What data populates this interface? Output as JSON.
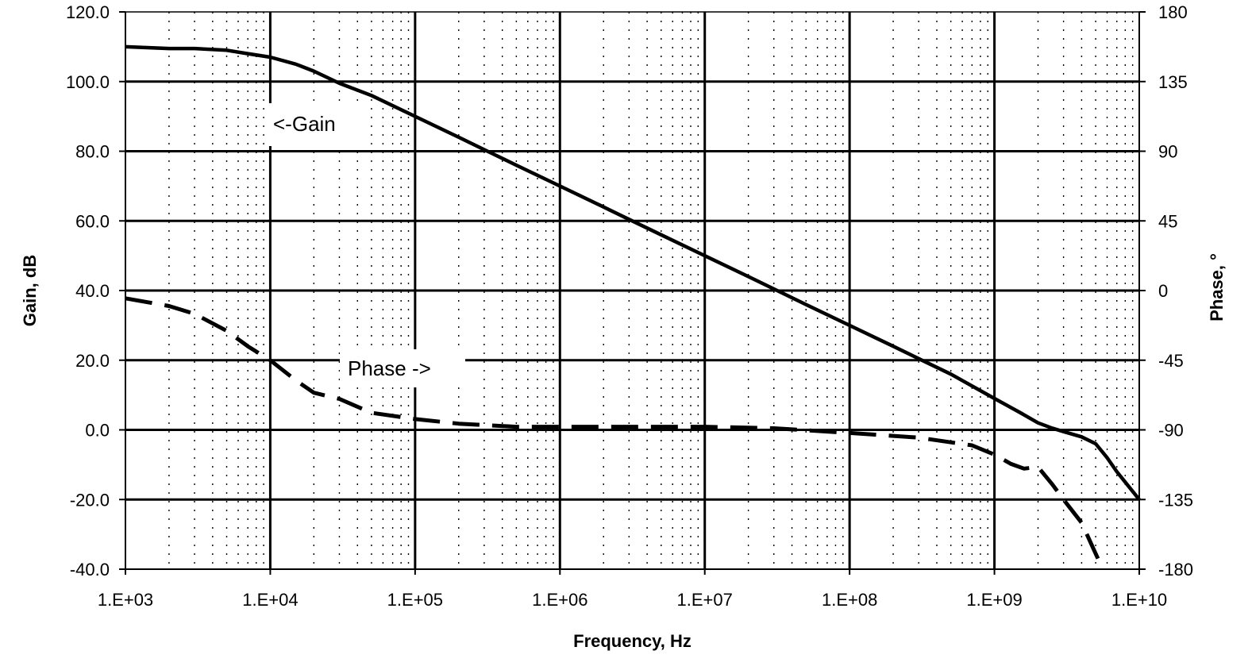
{
  "chart_data": {
    "type": "line",
    "title": "",
    "xlabel": "Frequency, Hz",
    "ylabel_left": "Gain, dB",
    "ylabel_right": "Phase, °",
    "x_scale": "log",
    "xlim": [
      1000,
      10000000000
    ],
    "ylim_left": [
      -40,
      120
    ],
    "ylim_right": [
      -180,
      180
    ],
    "x_tick_labels": [
      "1.E+03",
      "1.E+04",
      "1.E+05",
      "1.E+06",
      "1.E+07",
      "1.E+08",
      "1.E+09",
      "1.E+10"
    ],
    "y_left_tick_labels": [
      "-40.0",
      "-20.0",
      "0.0",
      "20.0",
      "40.0",
      "60.0",
      "80.0",
      "100.0",
      "120.0"
    ],
    "y_right_tick_labels": [
      "-180",
      "-135",
      "-90",
      "-45",
      "0",
      "45",
      "90",
      "135",
      "180"
    ],
    "grid": true,
    "annotations": [
      {
        "text": "<-Gain",
        "series": "Gain"
      },
      {
        "text": "Phase ->",
        "series": "Phase"
      }
    ],
    "series": [
      {
        "name": "Gain",
        "axis": "left",
        "style": "solid",
        "x": [
          1000,
          2000,
          3000,
          5000,
          7000,
          10000,
          15000,
          20000,
          30000,
          50000,
          100000,
          200000,
          316000,
          500000,
          1000000,
          2000000,
          3160000,
          5000000,
          10000000,
          20000000,
          31600000,
          50000000,
          100000000,
          200000000,
          316000000,
          500000000,
          1000000000,
          1500000000,
          2000000000,
          2500000000,
          3000000000,
          4000000000,
          5000000000,
          6000000000,
          7000000000,
          8000000000,
          10000000000
        ],
        "values": [
          110,
          109.5,
          109.5,
          109,
          108,
          107,
          105,
          103,
          99.5,
          96,
          90,
          84,
          80,
          76,
          70,
          64,
          60,
          56,
          50,
          44,
          40,
          36,
          30,
          24,
          20,
          16,
          9,
          5,
          2,
          0.5,
          -0.5,
          -2,
          -4,
          -8,
          -12,
          -15,
          -20
        ]
      },
      {
        "name": "Phase",
        "axis": "right",
        "style": "dashed",
        "x": [
          1000,
          2000,
          3000,
          5000,
          7000,
          10000,
          15000,
          20000,
          30000,
          50000,
          100000,
          200000,
          500000,
          1000000,
          3000000,
          10000000,
          30000000,
          100000000,
          300000000,
          700000000,
          1000000000,
          1300000000,
          1600000000,
          2000000000,
          2500000000,
          3000000000,
          4000000000,
          5000000000,
          5600000000
        ],
        "values": [
          -5,
          -10,
          -15,
          -26,
          -36,
          -45,
          -58,
          -66,
          -70,
          -79,
          -83,
          -86,
          -88,
          -88,
          -88,
          -88,
          -89,
          -92,
          -95,
          -100,
          -106,
          -112,
          -115,
          -114,
          -125,
          -135,
          -150,
          -170,
          -180
        ]
      }
    ],
    "colors": {
      "line": "#000000",
      "grid": "#000000",
      "background": "#ffffff"
    }
  }
}
